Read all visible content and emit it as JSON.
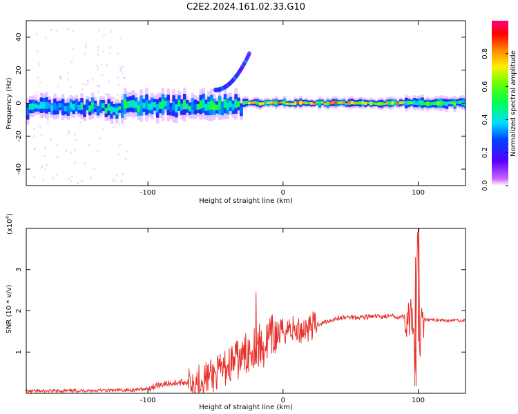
{
  "title": "C2E2.2024.161.02.33.G10",
  "colors": {
    "snr_line": "#e8302a",
    "background": "#ffffff",
    "axis": "#000000",
    "spectrogram_low": "#cc66ff",
    "spectrogram_high": "#ff0000"
  },
  "chart_data": [
    {
      "type": "heatmap",
      "xlabel": "Height of straight line (km)",
      "ylabel": "Frequency (Hz)",
      "xlim": [
        -190,
        135
      ],
      "ylim": [
        -50,
        50
      ],
      "xticks": [
        -100,
        0,
        100
      ],
      "yticks": [
        -40,
        -20,
        0,
        20,
        40
      ],
      "colorbar": {
        "label": "Normalized spectral amplitude",
        "range": [
          0,
          1
        ],
        "ticks": [
          "0.0",
          "0.2",
          "0.4",
          "0.6",
          "0.8"
        ],
        "colormap": "rainbow (purple to red)"
      },
      "bands": [
        {
          "x": [
            -190,
            -120
          ],
          "center_hz": -3,
          "half_width_hz": 4,
          "peak": 0.45
        },
        {
          "x": [
            -120,
            -30
          ],
          "center_hz": -2,
          "half_width_hz": 5,
          "peak": 0.5
        },
        {
          "x": [
            -30,
            90
          ],
          "center_hz": 0,
          "half_width_hz": 2,
          "peak": 0.8
        },
        {
          "x": [
            90,
            135
          ],
          "center_hz": 0,
          "half_width_hz": 2.5,
          "peak": 0.6
        }
      ],
      "branch": {
        "x": [
          -50,
          -25
        ],
        "y": [
          8,
          30
        ]
      }
    },
    {
      "type": "line",
      "xlabel": "Height of straight line (km)",
      "ylabel": "SNR (10 * v/v)",
      "y_scale_label": "(x10",
      "y_scale_exponent": "4",
      "y_scale_close": ")",
      "xlim": [
        -190,
        135
      ],
      "ylim": [
        0,
        4
      ],
      "xticks": [
        -100,
        0,
        100
      ],
      "yticks": [
        1,
        2,
        3
      ],
      "series": [
        {
          "x": [
            -190,
            -160,
            -130,
            -110,
            -100,
            -90,
            -80,
            -70,
            -60,
            -50,
            -45,
            -40,
            -35,
            -30,
            -25,
            -20,
            -15,
            -10,
            -5,
            0,
            5,
            10,
            20,
            30,
            40,
            50,
            60,
            70,
            80,
            90,
            95,
            97,
            98,
            99,
            100,
            101,
            102,
            104,
            110,
            120,
            135
          ],
          "y": [
            0.05,
            0.06,
            0.07,
            0.08,
            0.12,
            0.22,
            0.25,
            0.28,
            0.35,
            0.45,
            0.55,
            0.7,
            0.8,
            0.85,
            1.05,
            1.2,
            1.1,
            1.3,
            1.4,
            1.5,
            1.6,
            1.5,
            1.62,
            1.72,
            1.82,
            1.85,
            1.85,
            1.86,
            1.87,
            1.85,
            1.8,
            1.1,
            0.3,
            2.9,
            3.9,
            0.3,
            2.2,
            1.8,
            1.78,
            1.77,
            1.77
          ]
        }
      ],
      "peaks": [
        {
          "x": -20,
          "y": 2.45
        },
        {
          "x": 98,
          "y": 3.3
        },
        {
          "x": 100.5,
          "y": 4.0
        }
      ]
    }
  ]
}
